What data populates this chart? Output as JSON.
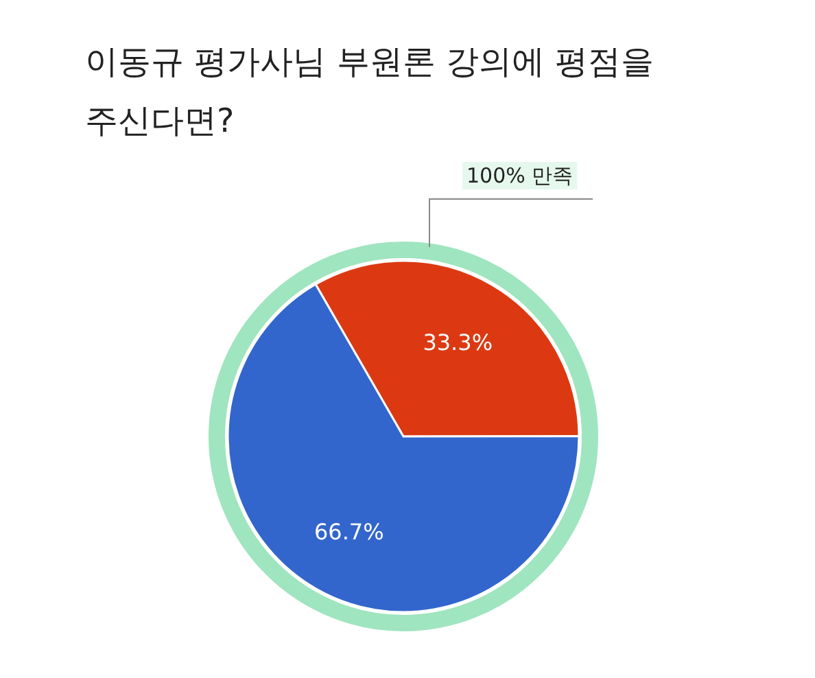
{
  "chart_data": {
    "type": "pie",
    "title": "이동규 평가사님 부원론 강의에 평점을 주신다면?",
    "categories": [
      null,
      null
    ],
    "values": [
      33.3,
      66.7
    ],
    "colors": [
      "#dc3912",
      "#3366cc"
    ],
    "value_labels": [
      "33.3%",
      "66.7%"
    ],
    "annotations": [
      "100% 만족"
    ]
  }
}
